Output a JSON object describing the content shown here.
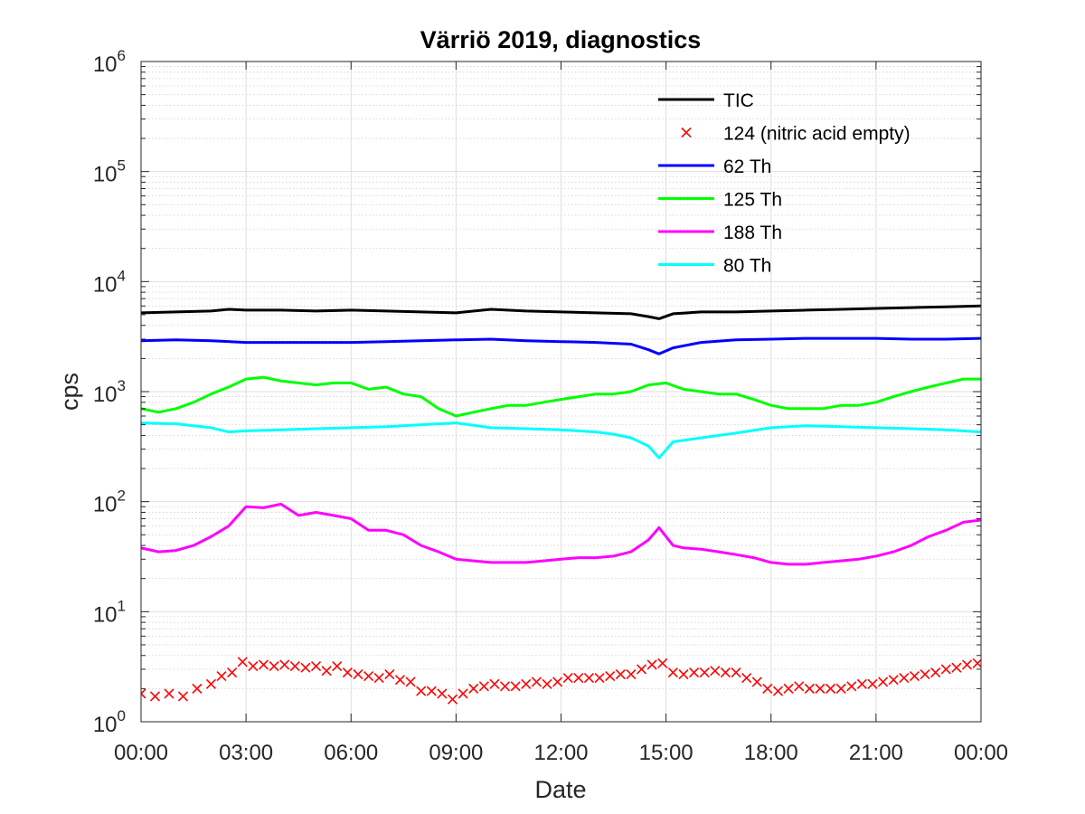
{
  "chart_data": {
    "type": "line",
    "title": "Värriö 2019, diagnostics",
    "xlabel": "Date",
    "ylabel": "cps",
    "x_unit": "time of day (hours)",
    "xlim": [
      0,
      24
    ],
    "x_ticks": [
      0,
      3,
      6,
      9,
      12,
      15,
      18,
      21,
      24
    ],
    "x_tick_labels": [
      "00:00",
      "03:00",
      "06:00",
      "09:00",
      "12:00",
      "15:00",
      "18:00",
      "21:00",
      "00:00"
    ],
    "y_scale": "log",
    "ylim": [
      1,
      1000000
    ],
    "y_ticks": [
      {
        "value": 1,
        "base": "10",
        "exp": "0"
      },
      {
        "value": 10,
        "base": "10",
        "exp": "1"
      },
      {
        "value": 100,
        "base": "10",
        "exp": "2"
      },
      {
        "value": 1000,
        "base": "10",
        "exp": "3"
      },
      {
        "value": 10000,
        "base": "10",
        "exp": "4"
      },
      {
        "value": 100000,
        "base": "10",
        "exp": "5"
      },
      {
        "value": 1000000,
        "base": "10",
        "exp": "6"
      }
    ],
    "grid": true,
    "minor_grid": true,
    "legend_position": "top-right",
    "series": [
      {
        "name": "TIC",
        "color": "#000000",
        "style": "line",
        "x": [
          0,
          1,
          2,
          2.5,
          3,
          4,
          5,
          6,
          7,
          8,
          9,
          10,
          11,
          12,
          13,
          14,
          14.5,
          14.8,
          15.2,
          16,
          17,
          18,
          19,
          20,
          21,
          22,
          23,
          24
        ],
        "y": [
          5200,
          5300,
          5400,
          5600,
          5500,
          5500,
          5400,
          5500,
          5400,
          5300,
          5200,
          5600,
          5400,
          5300,
          5200,
          5100,
          4800,
          4600,
          5100,
          5300,
          5300,
          5400,
          5500,
          5600,
          5700,
          5800,
          5900,
          6000
        ]
      },
      {
        "name": "124 (nitric acid empty)",
        "color": "#ff0000",
        "style": "marker-x",
        "x": [
          0,
          0.4,
          0.8,
          1.2,
          1.6,
          2,
          2.3,
          2.6,
          2.9,
          3.2,
          3.5,
          3.8,
          4.1,
          4.4,
          4.7,
          5,
          5.3,
          5.6,
          5.9,
          6.2,
          6.5,
          6.8,
          7.1,
          7.4,
          7.7,
          8,
          8.3,
          8.6,
          8.9,
          9.2,
          9.5,
          9.8,
          10.1,
          10.4,
          10.7,
          11,
          11.3,
          11.6,
          11.9,
          12.2,
          12.5,
          12.8,
          13.1,
          13.4,
          13.7,
          14,
          14.3,
          14.6,
          14.9,
          15.2,
          15.5,
          15.8,
          16.1,
          16.4,
          16.7,
          17,
          17.3,
          17.6,
          17.9,
          18.2,
          18.5,
          18.8,
          19.1,
          19.4,
          19.7,
          20,
          20.3,
          20.6,
          20.9,
          21.2,
          21.5,
          21.8,
          22.1,
          22.4,
          22.7,
          23,
          23.3,
          23.6,
          23.9
        ],
        "y": [
          1.8,
          1.7,
          1.8,
          1.7,
          2.0,
          2.2,
          2.6,
          2.8,
          3.5,
          3.2,
          3.3,
          3.2,
          3.3,
          3.2,
          3.1,
          3.2,
          2.9,
          3.2,
          2.8,
          2.7,
          2.6,
          2.5,
          2.7,
          2.4,
          2.3,
          1.9,
          1.9,
          1.8,
          1.6,
          1.8,
          2.0,
          2.1,
          2.2,
          2.1,
          2.1,
          2.2,
          2.3,
          2.2,
          2.3,
          2.5,
          2.5,
          2.5,
          2.5,
          2.6,
          2.7,
          2.7,
          3.0,
          3.3,
          3.4,
          2.8,
          2.7,
          2.8,
          2.8,
          2.9,
          2.8,
          2.8,
          2.5,
          2.3,
          2.0,
          1.9,
          2.0,
          2.1,
          2.0,
          2.0,
          2.0,
          2.0,
          2.1,
          2.2,
          2.2,
          2.3,
          2.4,
          2.5,
          2.6,
          2.7,
          2.8,
          3.0,
          3.1,
          3.3,
          3.4
        ]
      },
      {
        "name": "62 Th",
        "color": "#0000ff",
        "style": "line",
        "x": [
          0,
          1,
          2,
          3,
          4,
          5,
          6,
          7,
          8,
          9,
          10,
          11,
          12,
          13,
          14,
          14.5,
          14.8,
          15.2,
          16,
          17,
          18,
          19,
          20,
          21,
          22,
          23,
          24
        ],
        "y": [
          2900,
          2950,
          2900,
          2800,
          2800,
          2800,
          2800,
          2850,
          2900,
          2950,
          3000,
          2900,
          2850,
          2800,
          2700,
          2400,
          2200,
          2500,
          2800,
          2950,
          3000,
          3050,
          3050,
          3050,
          3000,
          3000,
          3050
        ]
      },
      {
        "name": "125 Th",
        "color": "#00ff00",
        "style": "line",
        "x": [
          0,
          0.5,
          1,
          1.5,
          2,
          2.5,
          3,
          3.5,
          4,
          4.5,
          5,
          5.5,
          6,
          6.5,
          7,
          7.5,
          8,
          8.5,
          9,
          9.5,
          10,
          10.5,
          11,
          11.5,
          12,
          12.5,
          13,
          13.5,
          14,
          14.5,
          15,
          15.5,
          16,
          16.5,
          17,
          17.5,
          18,
          18.5,
          19,
          19.5,
          20,
          20.5,
          21,
          21.5,
          22,
          22.5,
          23,
          23.5,
          24
        ],
        "y": [
          700,
          650,
          700,
          800,
          950,
          1100,
          1300,
          1350,
          1250,
          1200,
          1150,
          1200,
          1200,
          1050,
          1100,
          950,
          900,
          700,
          600,
          650,
          700,
          750,
          750,
          800,
          850,
          900,
          950,
          950,
          1000,
          1150,
          1200,
          1050,
          1000,
          950,
          950,
          850,
          750,
          700,
          700,
          700,
          750,
          750,
          800,
          900,
          1000,
          1100,
          1200,
          1300,
          1300
        ]
      },
      {
        "name": "188 Th",
        "color": "#ff00ff",
        "style": "line",
        "x": [
          0,
          0.5,
          1,
          1.5,
          2,
          2.5,
          3,
          3.5,
          4,
          4.5,
          5,
          5.5,
          6,
          6.5,
          7,
          7.5,
          8,
          8.5,
          9,
          9.5,
          10,
          10.5,
          11,
          11.5,
          12,
          12.5,
          13,
          13.5,
          14,
          14.5,
          14.8,
          15.2,
          15.5,
          16,
          16.5,
          17,
          17.5,
          18,
          18.5,
          19,
          19.5,
          20,
          20.5,
          21,
          21.5,
          22,
          22.5,
          23,
          23.5,
          24
        ],
        "y": [
          38,
          35,
          36,
          40,
          48,
          60,
          90,
          88,
          95,
          75,
          80,
          75,
          70,
          55,
          55,
          50,
          40,
          35,
          30,
          29,
          28,
          28,
          28,
          29,
          30,
          31,
          31,
          32,
          35,
          45,
          58,
          40,
          38,
          37,
          35,
          33,
          31,
          28,
          27,
          27,
          28,
          29,
          30,
          32,
          35,
          40,
          48,
          55,
          65,
          68
        ]
      },
      {
        "name": "80 Th",
        "color": "#00ffff",
        "style": "line",
        "x": [
          0,
          1,
          2,
          2.5,
          3,
          4,
          5,
          6,
          7,
          8,
          9,
          10,
          11,
          12,
          13,
          13.5,
          14,
          14.5,
          14.8,
          15.2,
          16,
          17,
          18,
          19,
          20,
          21,
          22,
          23,
          24
        ],
        "y": [
          520,
          510,
          470,
          430,
          440,
          450,
          460,
          470,
          480,
          500,
          520,
          470,
          460,
          450,
          430,
          410,
          380,
          320,
          250,
          350,
          380,
          420,
          470,
          490,
          480,
          470,
          460,
          450,
          430
        ]
      }
    ]
  }
}
